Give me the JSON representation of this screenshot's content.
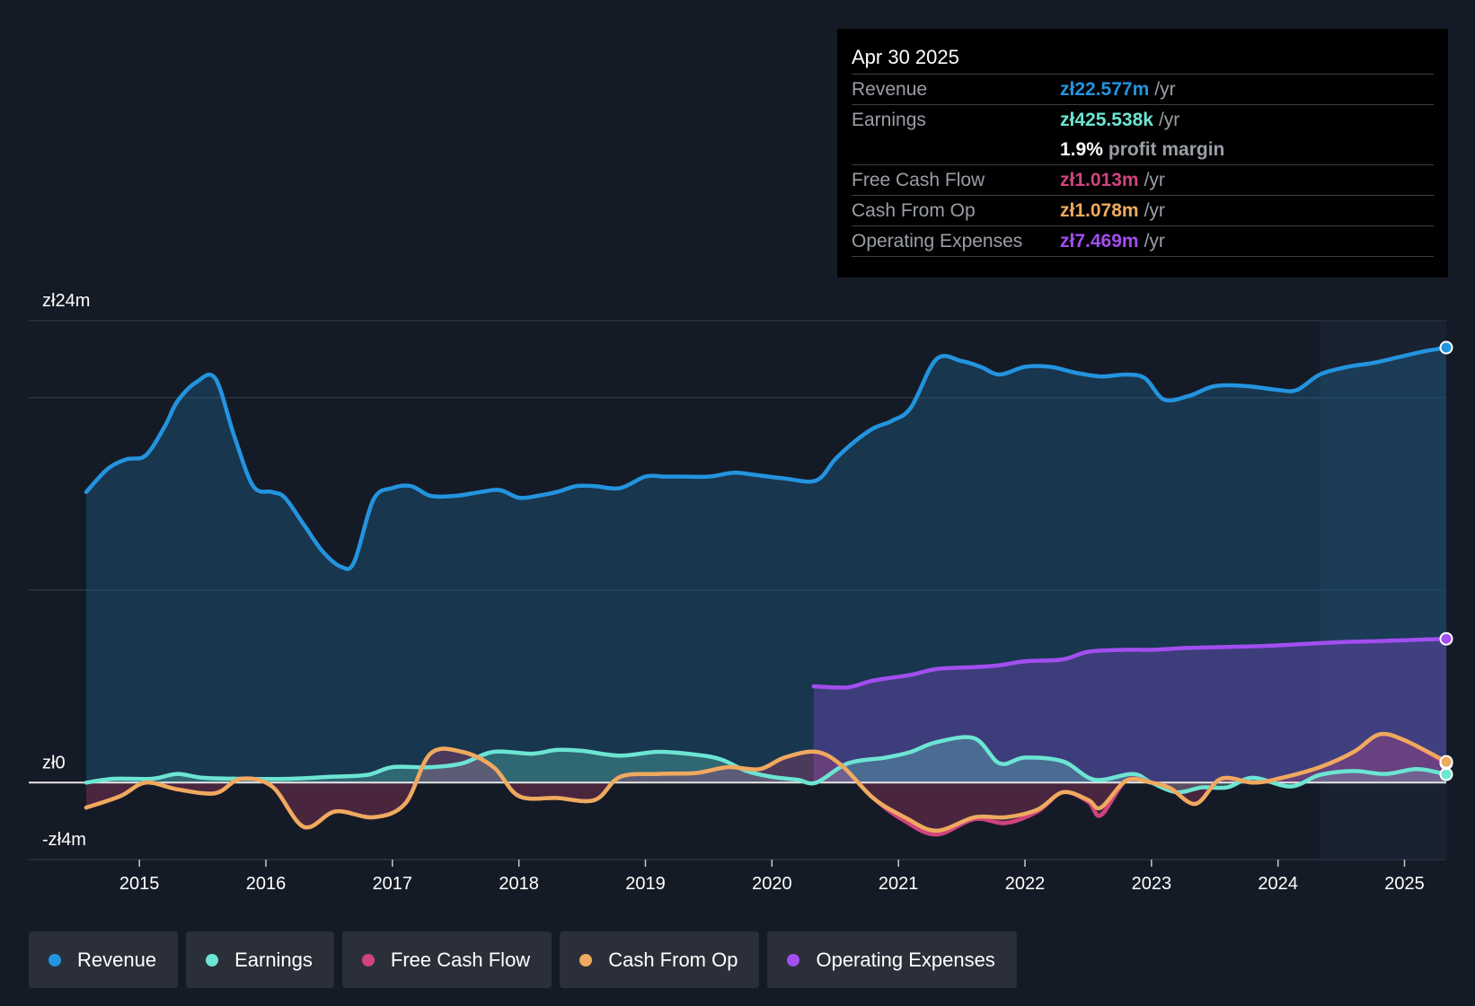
{
  "tooltip": {
    "date": "Apr 30 2025",
    "rows": [
      {
        "label": "Revenue",
        "value": "zł22.577m",
        "unit": "/yr",
        "color": "#2394df"
      },
      {
        "label": "Earnings",
        "value": "zł425.538k",
        "unit": "/yr",
        "color": "#6ce5d3"
      },
      {
        "label": "",
        "value": "1.9%",
        "unit": "profit margin",
        "color": "#ffffff"
      },
      {
        "label": "Free Cash Flow",
        "value": "zł1.013m",
        "unit": "/yr",
        "color": "#d0437f"
      },
      {
        "label": "Cash From Op",
        "value": "zł1.078m",
        "unit": "/yr",
        "color": "#eeaa5e"
      },
      {
        "label": "Operating Expenses",
        "value": "zł7.469m",
        "unit": "/yr",
        "color": "#a24ef0"
      }
    ]
  },
  "legend": [
    {
      "label": "Revenue",
      "color": "#2394df"
    },
    {
      "label": "Earnings",
      "color": "#6ce5d3"
    },
    {
      "label": "Free Cash Flow",
      "color": "#d0437f"
    },
    {
      "label": "Cash From Op",
      "color": "#eeaa5e"
    },
    {
      "label": "Operating Expenses",
      "color": "#a24ef0"
    }
  ],
  "chart_data": {
    "type": "line",
    "title": "",
    "xlabel": "",
    "ylabel": "",
    "ylim": [
      -4,
      24
    ],
    "xlim": [
      2014.58,
      2025.33
    ],
    "y_tick_labels": [
      {
        "value": 24,
        "label": "zł24m"
      },
      {
        "value": 0,
        "label": "zł0"
      },
      {
        "value": -4,
        "label": "-zł4m"
      }
    ],
    "gridlines": [
      24,
      20,
      10,
      0,
      -4
    ],
    "x_ticks": [
      2015,
      2016,
      2017,
      2018,
      2019,
      2020,
      2021,
      2022,
      2023,
      2024,
      2025
    ],
    "x_tick_labels": [
      "2015",
      "2016",
      "2017",
      "2018",
      "2019",
      "2020",
      "2021",
      "2022",
      "2023",
      "2024",
      "2025"
    ],
    "highlight_start": 2024.33,
    "series": [
      {
        "name": "Revenue",
        "color": "#2394df",
        "fill": true,
        "points": [
          [
            2014.58,
            15.1
          ],
          [
            2014.75,
            16.3
          ],
          [
            2014.9,
            16.8
          ],
          [
            2015.05,
            17.0
          ],
          [
            2015.2,
            18.5
          ],
          [
            2015.3,
            19.8
          ],
          [
            2015.45,
            20.8
          ],
          [
            2015.6,
            21.0
          ],
          [
            2015.75,
            18.0
          ],
          [
            2015.9,
            15.4
          ],
          [
            2016.05,
            15.1
          ],
          [
            2016.15,
            14.8
          ],
          [
            2016.3,
            13.4
          ],
          [
            2016.45,
            12.0
          ],
          [
            2016.6,
            11.2
          ],
          [
            2016.7,
            11.5
          ],
          [
            2016.85,
            14.7
          ],
          [
            2017.0,
            15.3
          ],
          [
            2017.15,
            15.4
          ],
          [
            2017.3,
            14.9
          ],
          [
            2017.5,
            14.9
          ],
          [
            2017.7,
            15.1
          ],
          [
            2017.85,
            15.2
          ],
          [
            2018.0,
            14.8
          ],
          [
            2018.15,
            14.9
          ],
          [
            2018.3,
            15.1
          ],
          [
            2018.45,
            15.4
          ],
          [
            2018.6,
            15.4
          ],
          [
            2018.8,
            15.3
          ],
          [
            2019.0,
            15.9
          ],
          [
            2019.15,
            15.9
          ],
          [
            2019.3,
            15.9
          ],
          [
            2019.5,
            15.9
          ],
          [
            2019.7,
            16.1
          ],
          [
            2019.85,
            16.0
          ],
          [
            2020.1,
            15.8
          ],
          [
            2020.35,
            15.7
          ],
          [
            2020.5,
            16.8
          ],
          [
            2020.65,
            17.7
          ],
          [
            2020.8,
            18.4
          ],
          [
            2020.95,
            18.8
          ],
          [
            2021.1,
            19.5
          ],
          [
            2021.3,
            22.0
          ],
          [
            2021.5,
            21.9
          ],
          [
            2021.65,
            21.6
          ],
          [
            2021.8,
            21.2
          ],
          [
            2022.0,
            21.6
          ],
          [
            2022.2,
            21.6
          ],
          [
            2022.4,
            21.3
          ],
          [
            2022.6,
            21.1
          ],
          [
            2022.8,
            21.2
          ],
          [
            2022.95,
            21.0
          ],
          [
            2023.1,
            19.9
          ],
          [
            2023.3,
            20.1
          ],
          [
            2023.5,
            20.6
          ],
          [
            2023.75,
            20.6
          ],
          [
            2024.0,
            20.4
          ],
          [
            2024.15,
            20.4
          ],
          [
            2024.33,
            21.2
          ],
          [
            2024.55,
            21.6
          ],
          [
            2024.75,
            21.8
          ],
          [
            2024.95,
            22.1
          ],
          [
            2025.15,
            22.4
          ],
          [
            2025.33,
            22.6
          ]
        ]
      },
      {
        "name": "Operating Expenses",
        "color": "#a24ef0",
        "fill": true,
        "points": [
          [
            2020.33,
            5.0
          ],
          [
            2020.6,
            4.95
          ],
          [
            2020.8,
            5.3
          ],
          [
            2021.1,
            5.6
          ],
          [
            2021.3,
            5.9
          ],
          [
            2021.6,
            6.0
          ],
          [
            2021.8,
            6.1
          ],
          [
            2022.0,
            6.3
          ],
          [
            2022.3,
            6.4
          ],
          [
            2022.5,
            6.8
          ],
          [
            2022.8,
            6.9
          ],
          [
            2023.0,
            6.9
          ],
          [
            2023.3,
            7.0
          ],
          [
            2023.6,
            7.05
          ],
          [
            2023.9,
            7.1
          ],
          [
            2024.2,
            7.2
          ],
          [
            2024.5,
            7.3
          ],
          [
            2024.8,
            7.35
          ],
          [
            2025.0,
            7.4
          ],
          [
            2025.33,
            7.47
          ]
        ]
      },
      {
        "name": "Earnings",
        "color": "#6ce5d3",
        "fill": true,
        "points": [
          [
            2014.58,
            0.0
          ],
          [
            2014.8,
            0.2
          ],
          [
            2015.1,
            0.2
          ],
          [
            2015.3,
            0.45
          ],
          [
            2015.5,
            0.25
          ],
          [
            2015.8,
            0.2
          ],
          [
            2016.2,
            0.2
          ],
          [
            2016.5,
            0.3
          ],
          [
            2016.8,
            0.4
          ],
          [
            2017.0,
            0.8
          ],
          [
            2017.3,
            0.8
          ],
          [
            2017.55,
            1.0
          ],
          [
            2017.8,
            1.6
          ],
          [
            2018.1,
            1.5
          ],
          [
            2018.3,
            1.7
          ],
          [
            2018.5,
            1.65
          ],
          [
            2018.8,
            1.4
          ],
          [
            2019.1,
            1.6
          ],
          [
            2019.4,
            1.45
          ],
          [
            2019.6,
            1.2
          ],
          [
            2019.8,
            0.6
          ],
          [
            2020.0,
            0.3
          ],
          [
            2020.2,
            0.15
          ],
          [
            2020.35,
            0.0
          ],
          [
            2020.6,
            1.0
          ],
          [
            2020.9,
            1.3
          ],
          [
            2021.1,
            1.6
          ],
          [
            2021.3,
            2.1
          ],
          [
            2021.6,
            2.3
          ],
          [
            2021.8,
            1.0
          ],
          [
            2022.0,
            1.3
          ],
          [
            2022.3,
            1.1
          ],
          [
            2022.55,
            0.15
          ],
          [
            2022.85,
            0.45
          ],
          [
            2023.0,
            0.0
          ],
          [
            2023.2,
            -0.5
          ],
          [
            2023.4,
            -0.25
          ],
          [
            2023.6,
            -0.25
          ],
          [
            2023.8,
            0.25
          ],
          [
            2024.1,
            -0.2
          ],
          [
            2024.33,
            0.4
          ],
          [
            2024.6,
            0.6
          ],
          [
            2024.85,
            0.45
          ],
          [
            2025.1,
            0.7
          ],
          [
            2025.33,
            0.43
          ]
        ]
      },
      {
        "name": "Free Cash Flow",
        "color": "#d0437f",
        "fill": true,
        "points": [
          [
            2014.58,
            -1.3
          ],
          [
            2014.85,
            -0.7
          ],
          [
            2015.05,
            0.0
          ],
          [
            2015.3,
            -0.35
          ],
          [
            2015.6,
            -0.55
          ],
          [
            2015.8,
            0.2
          ],
          [
            2016.05,
            -0.2
          ],
          [
            2016.3,
            -2.3
          ],
          [
            2016.55,
            -1.5
          ],
          [
            2016.85,
            -1.8
          ],
          [
            2017.1,
            -1.1
          ],
          [
            2017.3,
            1.5
          ],
          [
            2017.55,
            1.6
          ],
          [
            2017.8,
            0.8
          ],
          [
            2018.0,
            -0.7
          ],
          [
            2018.3,
            -0.8
          ],
          [
            2018.6,
            -0.9
          ],
          [
            2018.8,
            0.3
          ],
          [
            2019.1,
            0.45
          ],
          [
            2019.4,
            0.5
          ],
          [
            2019.65,
            0.8
          ],
          [
            2019.9,
            0.7
          ],
          [
            2020.1,
            1.3
          ],
          [
            2020.35,
            1.6
          ],
          [
            2020.55,
            0.9
          ],
          [
            2020.8,
            -0.8
          ],
          [
            2021.05,
            -2.0
          ],
          [
            2021.3,
            -2.7
          ],
          [
            2021.6,
            -1.9
          ],
          [
            2021.85,
            -2.1
          ],
          [
            2022.1,
            -1.5
          ],
          [
            2022.3,
            -0.5
          ],
          [
            2022.5,
            -1.0
          ],
          [
            2022.6,
            -1.7
          ],
          [
            2022.8,
            0.1
          ],
          [
            2023.0,
            0.0
          ],
          [
            2023.15,
            -0.3
          ],
          [
            2023.35,
            -1.1
          ],
          [
            2023.55,
            0.2
          ],
          [
            2023.8,
            0.0
          ],
          [
            2024.0,
            0.2
          ],
          [
            2024.33,
            0.8
          ],
          [
            2024.6,
            1.6
          ],
          [
            2024.8,
            2.5
          ],
          [
            2025.0,
            2.2
          ],
          [
            2025.33,
            1.01
          ]
        ]
      },
      {
        "name": "Cash From Op",
        "color": "#eeaa5e",
        "fill": false,
        "points": [
          [
            2014.58,
            -1.3
          ],
          [
            2014.85,
            -0.7
          ],
          [
            2015.05,
            0.0
          ],
          [
            2015.3,
            -0.35
          ],
          [
            2015.6,
            -0.55
          ],
          [
            2015.8,
            0.2
          ],
          [
            2016.05,
            -0.2
          ],
          [
            2016.3,
            -2.3
          ],
          [
            2016.55,
            -1.5
          ],
          [
            2016.85,
            -1.8
          ],
          [
            2017.1,
            -1.1
          ],
          [
            2017.3,
            1.5
          ],
          [
            2017.55,
            1.6
          ],
          [
            2017.8,
            0.8
          ],
          [
            2018.0,
            -0.7
          ],
          [
            2018.3,
            -0.8
          ],
          [
            2018.6,
            -0.9
          ],
          [
            2018.8,
            0.3
          ],
          [
            2019.1,
            0.45
          ],
          [
            2019.4,
            0.5
          ],
          [
            2019.65,
            0.8
          ],
          [
            2019.9,
            0.7
          ],
          [
            2020.1,
            1.3
          ],
          [
            2020.35,
            1.6
          ],
          [
            2020.55,
            0.9
          ],
          [
            2020.8,
            -0.8
          ],
          [
            2021.05,
            -1.8
          ],
          [
            2021.3,
            -2.5
          ],
          [
            2021.6,
            -1.8
          ],
          [
            2021.85,
            -1.8
          ],
          [
            2022.1,
            -1.4
          ],
          [
            2022.3,
            -0.5
          ],
          [
            2022.5,
            -0.9
          ],
          [
            2022.6,
            -1.3
          ],
          [
            2022.8,
            0.1
          ],
          [
            2023.0,
            0.0
          ],
          [
            2023.15,
            -0.3
          ],
          [
            2023.35,
            -1.1
          ],
          [
            2023.55,
            0.2
          ],
          [
            2023.8,
            0.0
          ],
          [
            2024.0,
            0.2
          ],
          [
            2024.33,
            0.8
          ],
          [
            2024.6,
            1.6
          ],
          [
            2024.8,
            2.5
          ],
          [
            2025.0,
            2.2
          ],
          [
            2025.33,
            1.08
          ]
        ]
      }
    ]
  }
}
